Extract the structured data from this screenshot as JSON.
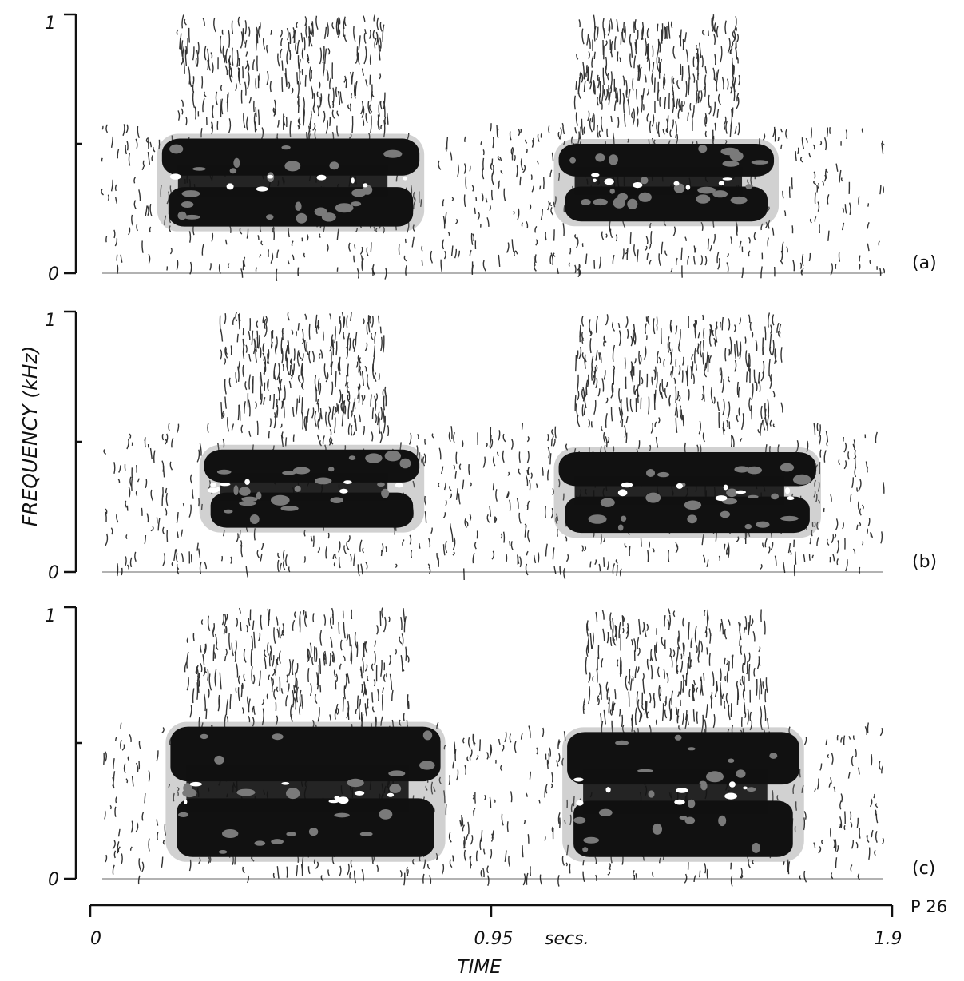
{
  "chart_data": {
    "type": "heatmap",
    "description_mode": "spectrogram",
    "panels": [
      {
        "id": "a",
        "label": "(a)",
        "freq_range_khz": [
          0,
          1
        ],
        "yticks": [
          "1",
          "0"
        ],
        "calls": [
          {
            "t_start": 0.17,
            "t_end": 0.78,
            "f_low": 0.18,
            "f_high": 0.52
          },
          {
            "t_start": 1.11,
            "t_end": 1.62,
            "f_low": 0.2,
            "f_high": 0.5
          }
        ]
      },
      {
        "id": "b",
        "label": "(b)",
        "freq_range_khz": [
          0,
          1
        ],
        "yticks": [
          "1",
          "0"
        ],
        "calls": [
          {
            "t_start": 0.27,
            "t_end": 0.78,
            "f_low": 0.17,
            "f_high": 0.47
          },
          {
            "t_start": 1.11,
            "t_end": 1.72,
            "f_low": 0.15,
            "f_high": 0.46
          }
        ]
      },
      {
        "id": "c",
        "label": "(c)",
        "freq_range_khz": [
          0,
          1
        ],
        "yticks": [
          "1",
          "0"
        ],
        "calls": [
          {
            "t_start": 0.19,
            "t_end": 0.83,
            "f_low": 0.08,
            "f_high": 0.56
          },
          {
            "t_start": 1.13,
            "t_end": 1.68,
            "f_low": 0.08,
            "f_high": 0.54
          }
        ]
      }
    ],
    "time_range_s": [
      0,
      1.9
    ],
    "xticks": [
      "0",
      "0.95",
      "1.9"
    ],
    "xunit": "secs.",
    "xlabel": "TIME",
    "ylabel": "FREQUENCY (kHz)",
    "corner_note": "P 26",
    "colors": {
      "ink": "#111111",
      "mid": "#7a7a7a",
      "paper": "#ffffff"
    }
  }
}
